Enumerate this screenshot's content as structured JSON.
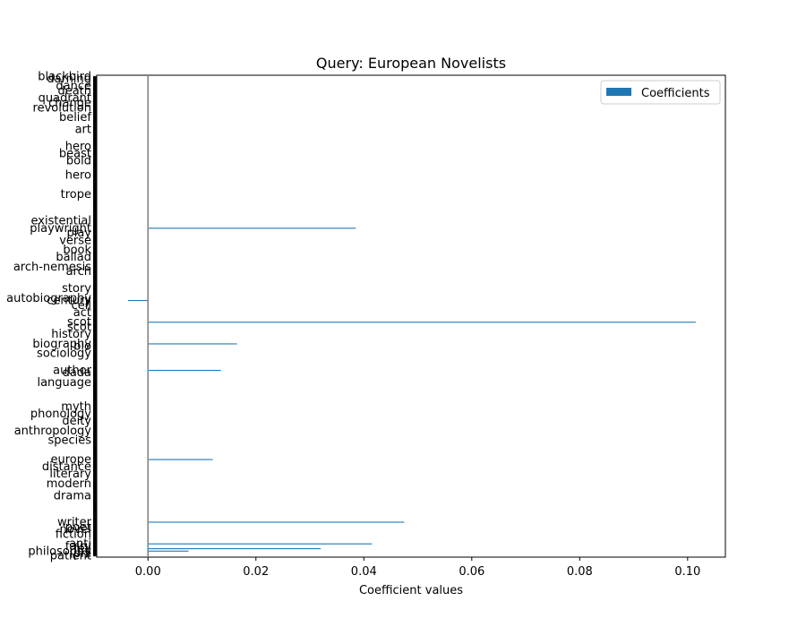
{
  "chart_data": {
    "type": "bar",
    "orientation": "horizontal",
    "title": "Query: European Novelists",
    "xlabel": "Coefficient values",
    "ylabel": "",
    "xlim": [
      -0.0095,
      0.107
    ],
    "xticks": [
      0.0,
      0.02,
      0.04,
      0.06,
      0.08,
      0.1
    ],
    "xtick_labels": [
      "0.00",
      "0.02",
      "0.04",
      "0.06",
      "0.08",
      "0.10"
    ],
    "grid": false,
    "legend": {
      "position": "top-right",
      "entries": [
        "Coefficients"
      ]
    },
    "colors": {
      "bar": "#1f77b4",
      "zero_line": "#808080",
      "axis": "#000000"
    },
    "bar_count": 200,
    "categories": [
      {
        "index": 0,
        "label": "patient",
        "value": 0.0
      },
      {
        "index": 1,
        "label": "phi",
        "value": 0.0
      },
      {
        "index": 2,
        "label": "philosophy",
        "value": 0.0075
      },
      {
        "index": 3,
        "label": "fell",
        "value": 0.032
      },
      {
        "index": 4,
        "label": "fairy",
        "value": 0.0
      },
      {
        "index": 5,
        "label": "anti",
        "value": 0.0415
      },
      {
        "index": 9,
        "label": "fiction",
        "value": 0.0
      },
      {
        "index": 11,
        "label": "novel",
        "value": 0.0
      },
      {
        "index": 12,
        "label": "poet",
        "value": 0.0
      },
      {
        "index": 14,
        "label": "writer",
        "value": 0.0475
      },
      {
        "index": 25,
        "label": "drama",
        "value": 0.0
      },
      {
        "index": 30,
        "label": "modern",
        "value": 0.0
      },
      {
        "index": 34,
        "label": "literary",
        "value": 0.0
      },
      {
        "index": 37,
        "label": "distance",
        "value": 0.0
      },
      {
        "index": 40,
        "label": "europe",
        "value": 0.012
      },
      {
        "index": 48,
        "label": "species",
        "value": 0.0
      },
      {
        "index": 52,
        "label": "anthropology",
        "value": 0.0
      },
      {
        "index": 56,
        "label": "deity",
        "value": 0.0
      },
      {
        "index": 59,
        "label": "phonology",
        "value": 0.0
      },
      {
        "index": 62,
        "label": "myth",
        "value": 0.0
      },
      {
        "index": 72,
        "label": "language",
        "value": 0.0
      },
      {
        "index": 76,
        "label": "dada",
        "value": 0.0
      },
      {
        "index": 77,
        "label": "author",
        "value": 0.0135
      },
      {
        "index": 84,
        "label": "sociology",
        "value": 0.0
      },
      {
        "index": 87,
        "label": "bio",
        "value": 0.0
      },
      {
        "index": 88,
        "label": "biography",
        "value": 0.0165
      },
      {
        "index": 92,
        "label": "history",
        "value": 0.0
      },
      {
        "index": 95,
        "label": "scot",
        "value": 0.0
      },
      {
        "index": 97,
        "label": "scot",
        "value": 0.1015
      },
      {
        "index": 101,
        "label": "act",
        "value": 0.0
      },
      {
        "index": 104,
        "label": "cell",
        "value": 0.0
      },
      {
        "index": 106,
        "label": "century",
        "value": -0.0037
      },
      {
        "index": 107,
        "label": "autobiography",
        "value": 0.0
      },
      {
        "index": 111,
        "label": "story",
        "value": 0.0
      },
      {
        "index": 118,
        "label": "arch",
        "value": 0.0
      },
      {
        "index": 120,
        "label": "arch-nemesis",
        "value": 0.0
      },
      {
        "index": 124,
        "label": "ballad",
        "value": 0.0
      },
      {
        "index": 127,
        "label": "book",
        "value": 0.0
      },
      {
        "index": 131,
        "label": "verse",
        "value": 0.0
      },
      {
        "index": 134,
        "label": "play",
        "value": 0.0
      },
      {
        "index": 136,
        "label": "playwright",
        "value": 0.0385
      },
      {
        "index": 139,
        "label": "existential",
        "value": 0.0
      },
      {
        "index": 150,
        "label": "trope",
        "value": 0.0
      },
      {
        "index": 158,
        "label": "hero",
        "value": 0.0
      },
      {
        "index": 164,
        "label": "bold",
        "value": 0.0
      },
      {
        "index": 167,
        "label": "beast",
        "value": 0.0
      },
      {
        "index": 170,
        "label": "hero",
        "value": 0.0
      },
      {
        "index": 177,
        "label": "art",
        "value": 0.0
      },
      {
        "index": 182,
        "label": "belief",
        "value": 0.0
      },
      {
        "index": 186,
        "label": "revolution",
        "value": 0.0
      },
      {
        "index": 188,
        "label": "change",
        "value": 0.0
      },
      {
        "index": 190,
        "label": "quadrant",
        "value": 0.0
      },
      {
        "index": 193,
        "label": "death",
        "value": 0.0
      },
      {
        "index": 195,
        "label": "dance",
        "value": 0.0
      },
      {
        "index": 198,
        "label": "darning",
        "value": 0.0
      },
      {
        "index": 199,
        "label": "blackbird",
        "value": 0.0
      }
    ]
  }
}
